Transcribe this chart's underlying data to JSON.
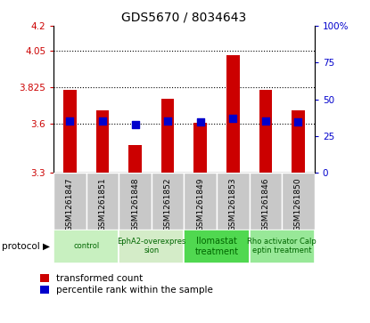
{
  "title": "GDS5670 / 8034643",
  "samples": [
    "GSM1261847",
    "GSM1261851",
    "GSM1261848",
    "GSM1261852",
    "GSM1261849",
    "GSM1261853",
    "GSM1261846",
    "GSM1261850"
  ],
  "red_values": [
    3.81,
    3.68,
    3.47,
    3.755,
    3.605,
    4.02,
    3.81,
    3.68
  ],
  "blue_values_left": [
    3.615,
    3.615,
    3.593,
    3.615,
    3.613,
    3.633,
    3.615,
    3.613
  ],
  "ylim_left": [
    3.3,
    4.2
  ],
  "ylim_right": [
    0,
    100
  ],
  "yticks_left": [
    3.3,
    3.6,
    3.825,
    4.05,
    4.2
  ],
  "yticks_right": [
    0,
    25,
    50,
    75,
    100
  ],
  "ytick_labels_left": [
    "3.3",
    "3.6",
    "3.825",
    "4.05",
    "4.2"
  ],
  "ytick_labels_right": [
    "0",
    "25",
    "50",
    "75",
    "100%"
  ],
  "grid_lines": [
    3.6,
    3.825,
    4.05
  ],
  "bar_bottom": 3.3,
  "protocol_groups": [
    {
      "label": "control",
      "start": 0,
      "end": 2,
      "color": "#c8f0c0"
    },
    {
      "label": "EphA2-overexpres\nsion",
      "start": 2,
      "end": 4,
      "color": "#d4ecc8"
    },
    {
      "label": "Ilomastat\ntreatment",
      "start": 4,
      "end": 6,
      "color": "#50d850"
    },
    {
      "label": "Rho activator Calp\neptin treatment",
      "start": 6,
      "end": 8,
      "color": "#98e898"
    }
  ],
  "bar_color": "#cc0000",
  "dot_color": "#0000cc",
  "bar_width": 0.4,
  "dot_size": 35,
  "legend_red_label": "transformed count",
  "legend_blue_label": "percentile rank within the sample",
  "left_color": "#cc0000",
  "right_color": "#0000cc",
  "label_bg_color": "#c8c8c8",
  "label_sep_color": "#ffffff"
}
